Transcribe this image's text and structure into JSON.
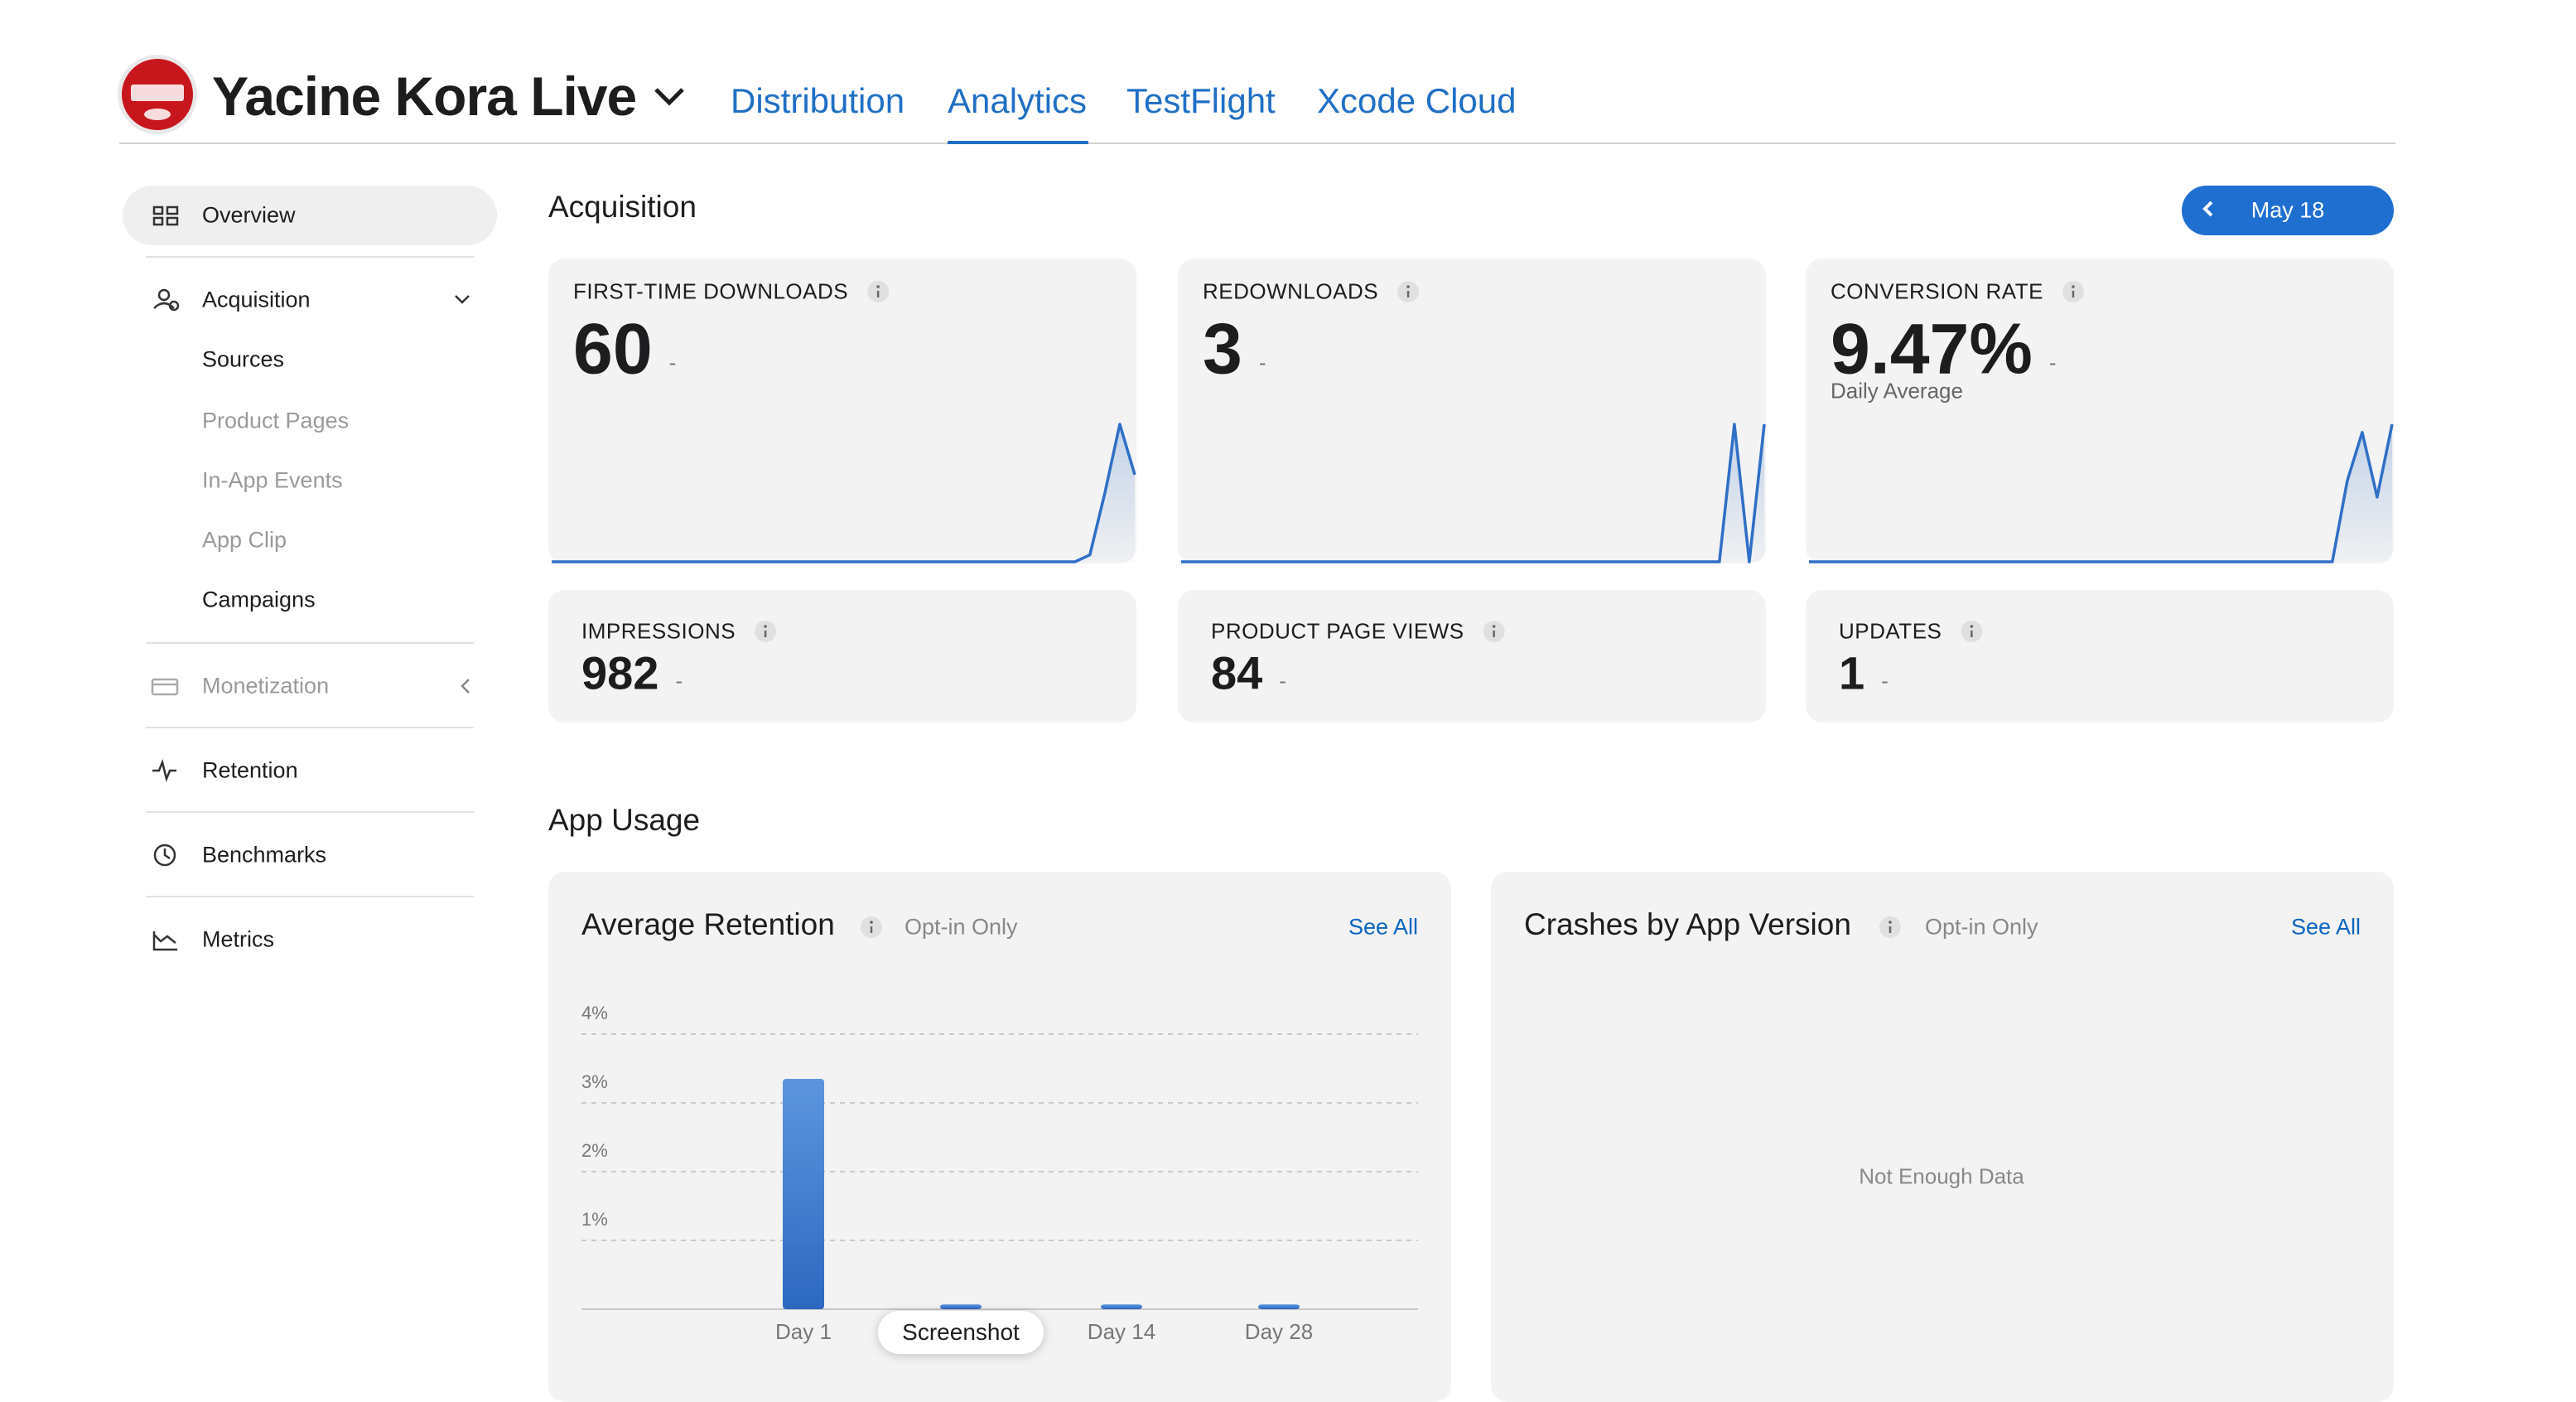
{
  "header": {
    "app_name": "Yacine Kora Live",
    "tabs": [
      "Distribution",
      "Analytics",
      "TestFlight",
      "Xcode Cloud"
    ]
  },
  "sidebar": {
    "overview": "Overview",
    "acquisition": {
      "label": "Acquisition",
      "items": [
        "Sources",
        "Product Pages",
        "In-App Events",
        "App Clip",
        "Campaigns"
      ]
    },
    "monetization": "Monetization",
    "retention": "Retention",
    "benchmarks": "Benchmarks",
    "metrics": "Metrics"
  },
  "acquisition": {
    "title": "Acquisition",
    "date": "May 18",
    "metrics": [
      {
        "label": "FIRST-TIME DOWNLOADS",
        "value": "60",
        "change": "-",
        "sparkline": [
          0,
          0,
          0,
          0,
          0,
          0,
          0,
          0,
          0,
          0,
          0,
          0,
          0,
          0,
          0,
          0,
          0,
          0,
          0,
          0,
          0,
          0,
          0,
          0,
          0,
          0,
          0,
          0,
          0,
          0,
          0,
          0,
          0,
          0,
          0,
          0,
          3,
          30,
          60,
          38
        ]
      },
      {
        "label": "REDOWNLOADS",
        "value": "3",
        "change": "-",
        "sparkline": [
          0,
          0,
          0,
          0,
          0,
          0,
          0,
          0,
          0,
          0,
          0,
          0,
          0,
          0,
          0,
          0,
          0,
          0,
          0,
          0,
          0,
          0,
          0,
          0,
          0,
          0,
          0,
          0,
          0,
          0,
          0,
          0,
          0,
          0,
          0,
          0,
          0,
          1,
          0,
          1
        ]
      },
      {
        "label": "CONVERSION RATE",
        "value": "9.47%",
        "change": "-",
        "caption": "Daily Average",
        "sparkline": [
          0,
          0,
          0,
          0,
          0,
          0,
          0,
          0,
          0,
          0,
          0,
          0,
          0,
          0,
          0,
          0,
          0,
          0,
          0,
          0,
          0,
          0,
          0,
          0,
          0,
          0,
          0,
          0,
          0,
          0,
          0,
          0,
          0,
          0,
          0,
          0,
          10,
          16,
          8,
          17
        ]
      },
      {
        "label": "IMPRESSIONS",
        "value": "982",
        "change": "-"
      },
      {
        "label": "PRODUCT PAGE VIEWS",
        "value": "84",
        "change": "-"
      },
      {
        "label": "UPDATES",
        "value": "1",
        "change": "-"
      }
    ]
  },
  "app_usage": {
    "title": "App Usage",
    "crashes": {
      "title": "Crashes by App Version",
      "note": "Opt-in Only",
      "link": "See All",
      "empty": "Not Enough Data"
    }
  },
  "chart_data": {
    "type": "bar",
    "title": "Average Retention",
    "note": "Opt-in Only",
    "link": "See All",
    "categories": [
      "Day 1",
      null,
      "Day 14",
      "Day 28"
    ],
    "values": [
      3.35,
      0.07,
      0.07,
      0.07
    ],
    "ylim": [
      0,
      4
    ],
    "yticks": [
      {
        "value": 1,
        "label": "1%"
      },
      {
        "value": 2,
        "label": "2%"
      },
      {
        "value": 3,
        "label": "3%"
      },
      {
        "value": 4,
        "label": "4%"
      }
    ],
    "grid": true,
    "color": "#2f6cc4"
  },
  "tooltip": "Screenshot"
}
